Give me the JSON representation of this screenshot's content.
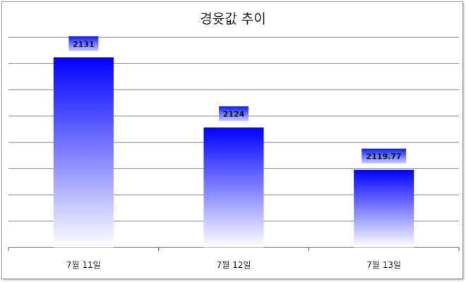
{
  "chart_data": {
    "type": "bar",
    "title": "경윳값 추이",
    "categories": [
      "7월 11일",
      "7월 12일",
      "7월 13일"
    ],
    "values": [
      2131,
      2124,
      2119.77
    ],
    "data_labels": [
      "2131",
      "2124",
      "2119.77"
    ],
    "ylim": [
      2112,
      2133
    ],
    "grid": true,
    "legend": "none",
    "xlabel": "",
    "ylabel": "",
    "colors": {
      "bar_top": "#0000ff",
      "bar_bottom": "#ffffff",
      "label_bg": "#1a2cff",
      "label_text": "#111111",
      "grid": "#4a4a4a"
    }
  }
}
